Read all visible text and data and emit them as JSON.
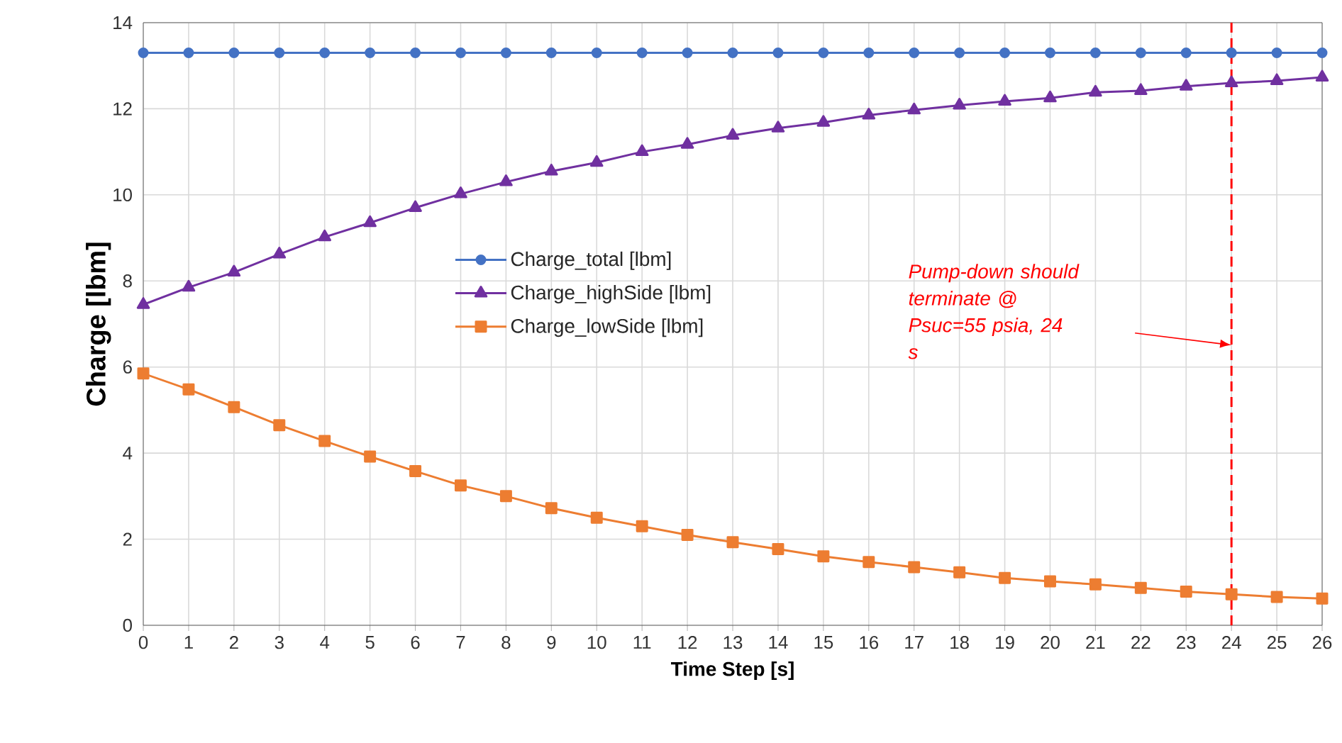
{
  "chart_data": {
    "type": "line",
    "xlabel": "Time Step [s]",
    "ylabel": "Charge [lbm]",
    "x": [
      0,
      1,
      2,
      3,
      4,
      5,
      6,
      7,
      8,
      9,
      10,
      11,
      12,
      13,
      14,
      15,
      16,
      17,
      18,
      19,
      20,
      21,
      22,
      23,
      24,
      25,
      26
    ],
    "series": [
      {
        "name": "Charge_total [lbm]",
        "color": "#4472c4",
        "marker": "circle",
        "values": [
          13.3,
          13.3,
          13.3,
          13.3,
          13.3,
          13.3,
          13.3,
          13.3,
          13.3,
          13.3,
          13.3,
          13.3,
          13.3,
          13.3,
          13.3,
          13.3,
          13.3,
          13.3,
          13.3,
          13.3,
          13.3,
          13.3,
          13.3,
          13.3,
          13.3,
          13.3,
          13.3
        ]
      },
      {
        "name": "Charge_highSide [lbm]",
        "color": "#7030a0",
        "marker": "triangle",
        "values": [
          7.45,
          7.85,
          8.2,
          8.62,
          9.02,
          9.35,
          9.7,
          10.02,
          10.3,
          10.55,
          10.75,
          11.0,
          11.17,
          11.38,
          11.55,
          11.68,
          11.85,
          11.97,
          12.08,
          12.17,
          12.25,
          12.38,
          12.42,
          12.52,
          12.6,
          12.65,
          12.73
        ]
      },
      {
        "name": "Charge_lowSide [lbm]",
        "color": "#ed7d31",
        "marker": "square",
        "values": [
          5.85,
          5.48,
          5.07,
          4.65,
          4.28,
          3.92,
          3.58,
          3.25,
          3.0,
          2.72,
          2.5,
          2.3,
          2.1,
          1.93,
          1.77,
          1.6,
          1.47,
          1.35,
          1.23,
          1.1,
          1.02,
          0.95,
          0.87,
          0.78,
          0.72,
          0.66,
          0.62
        ]
      }
    ],
    "xlim": [
      0,
      26
    ],
    "xticks": [
      0,
      1,
      2,
      3,
      4,
      5,
      6,
      7,
      8,
      9,
      10,
      11,
      12,
      13,
      14,
      15,
      16,
      17,
      18,
      19,
      20,
      21,
      22,
      23,
      24,
      25,
      26
    ],
    "ylim": [
      0,
      14
    ],
    "yticks": [
      0,
      2,
      4,
      6,
      8,
      10,
      12,
      14
    ],
    "grid": true,
    "legend": "center",
    "ref_lines": [
      {
        "axis": "x",
        "value": 24,
        "color": "#ff0000",
        "line_style": "dashed",
        "label": "Pump-down should terminate @ Psuc=55 psia, 24 s"
      }
    ]
  }
}
